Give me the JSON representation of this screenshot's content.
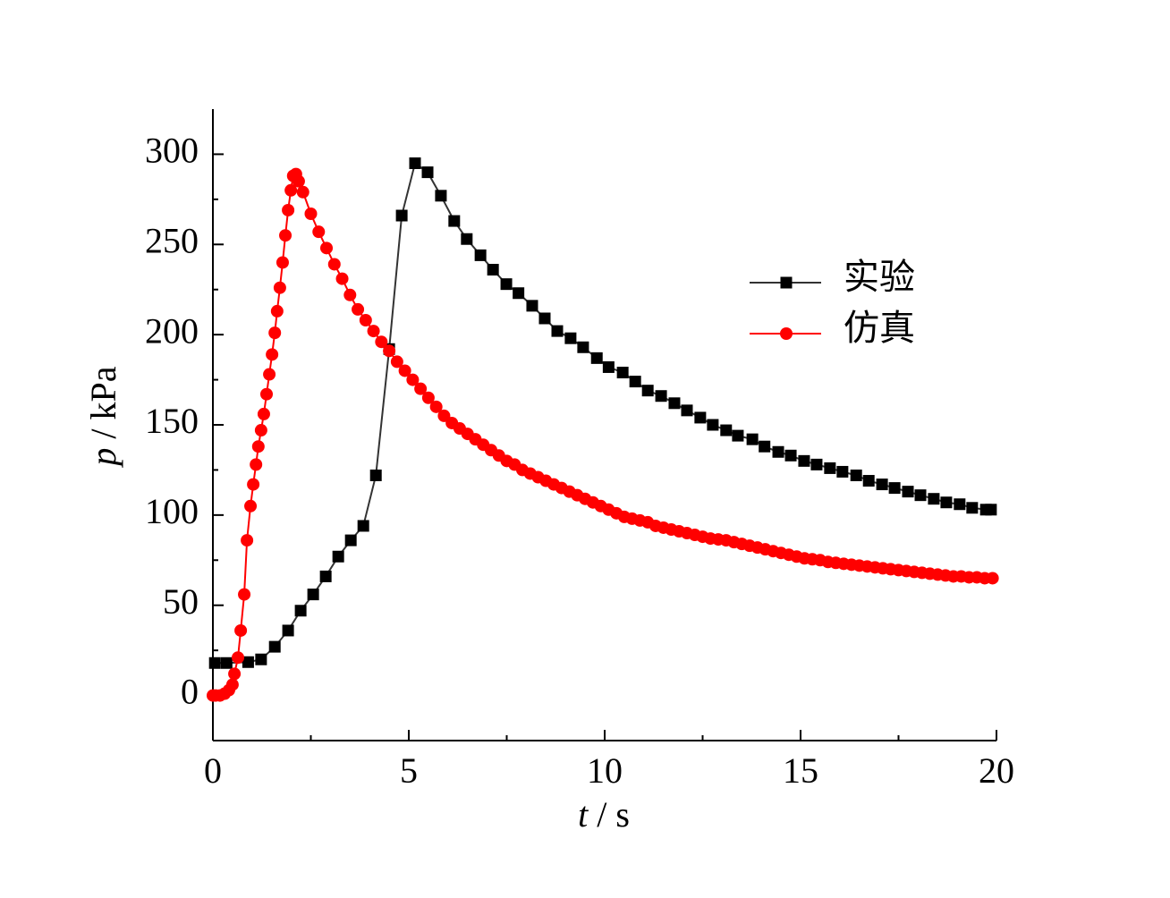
{
  "chart_data": {
    "type": "line",
    "x_label": [
      "t",
      " / s"
    ],
    "y_label": [
      "p",
      " / kPa"
    ],
    "xlim": [
      0,
      20
    ],
    "xticks": [
      0,
      5,
      10,
      15,
      20
    ],
    "xminorticks": [
      2.5,
      7.5,
      12.5,
      17.5
    ],
    "ylim": [
      -25,
      325
    ],
    "yticks": [
      0,
      50,
      100,
      150,
      200,
      250,
      300
    ],
    "yminorticks": [
      25,
      75,
      125,
      175,
      225,
      275
    ],
    "legend": "upper right",
    "series": [
      {
        "name": "实验",
        "color": "#000000",
        "line_color": "#333333",
        "marker": "square",
        "x": [
          0.05,
          0.35,
          0.9,
          1.23,
          1.58,
          1.92,
          2.24,
          2.56,
          2.88,
          3.2,
          3.52,
          3.84,
          4.16,
          4.5,
          4.82,
          5.16,
          5.48,
          5.82,
          6.16,
          6.48,
          6.83,
          7.15,
          7.49,
          7.8,
          8.15,
          8.47,
          8.79,
          9.13,
          9.45,
          9.8,
          10.1,
          10.46,
          10.78,
          11.1,
          11.44,
          11.78,
          12.1,
          12.44,
          12.76,
          13.1,
          13.4,
          13.77,
          14.08,
          14.43,
          14.75,
          15.09,
          15.41,
          15.75,
          16.07,
          16.42,
          16.74,
          17.08,
          17.4,
          17.74,
          18.06,
          18.4,
          18.72,
          19.06,
          19.38,
          19.73,
          19.86
        ],
        "values": [
          18,
          18,
          18.5,
          20,
          27,
          36,
          47,
          56,
          66,
          77,
          86,
          94,
          122,
          192,
          266,
          295,
          290,
          277,
          263,
          253,
          244,
          236,
          228,
          223,
          216,
          209,
          202,
          198,
          193,
          187,
          182,
          179,
          174,
          169,
          166,
          162,
          158,
          154,
          150,
          147,
          144,
          142,
          138,
          135,
          133,
          130,
          128,
          126,
          124,
          122,
          119,
          117,
          115,
          113,
          111,
          109,
          107,
          106,
          104,
          103,
          103
        ]
      },
      {
        "name": "仿真",
        "color": "#ff0000",
        "line_color": "#ff0000",
        "marker": "circle",
        "x": [
          0,
          0.07,
          0.18,
          0.3,
          0.41,
          0.5,
          0.55,
          0.64,
          0.71,
          0.8,
          0.87,
          0.96,
          1.03,
          1.1,
          1.16,
          1.23,
          1.3,
          1.37,
          1.44,
          1.51,
          1.58,
          1.64,
          1.71,
          1.78,
          1.85,
          1.92,
          1.99,
          2.05,
          2.12,
          2.19,
          2.3,
          2.5,
          2.7,
          2.9,
          3.1,
          3.3,
          3.5,
          3.7,
          3.9,
          4.1,
          4.3,
          4.5,
          4.7,
          4.9,
          5.1,
          5.3,
          5.5,
          5.7,
          5.9,
          6.1,
          6.3,
          6.5,
          6.7,
          6.9,
          7.1,
          7.3,
          7.5,
          7.7,
          7.9,
          8.1,
          8.3,
          8.5,
          8.7,
          8.9,
          9.1,
          9.3,
          9.5,
          9.7,
          9.9,
          10.1,
          10.3,
          10.5,
          10.7,
          10.9,
          11.1,
          11.3,
          11.5,
          11.7,
          11.9,
          12.1,
          12.3,
          12.5,
          12.7,
          12.9,
          13.1,
          13.3,
          13.5,
          13.7,
          13.9,
          14.1,
          14.3,
          14.5,
          14.7,
          14.9,
          15.1,
          15.3,
          15.5,
          15.7,
          15.9,
          16.1,
          16.3,
          16.5,
          16.7,
          16.9,
          17.1,
          17.3,
          17.5,
          17.7,
          17.9,
          18.1,
          18.3,
          18.5,
          18.7,
          18.9,
          19.1,
          19.3,
          19.5,
          19.7,
          19.9
        ],
        "values": [
          0,
          0,
          0,
          1,
          3,
          6,
          12,
          21,
          36,
          56,
          86,
          105,
          117,
          128,
          138,
          147,
          156,
          167,
          178,
          189,
          201,
          213,
          226,
          240,
          255,
          269,
          280,
          288,
          289,
          285,
          279,
          267,
          257,
          248,
          239,
          231,
          222,
          214,
          208,
          202,
          196,
          191,
          185,
          180,
          175,
          170,
          165,
          160,
          155,
          151,
          148,
          145,
          142,
          139,
          136,
          133,
          130,
          128,
          125,
          123,
          121,
          119,
          117,
          115,
          113,
          111,
          109,
          107,
          105,
          103,
          101,
          99,
          98,
          97,
          96,
          94,
          93,
          92,
          91,
          90,
          89,
          88,
          87,
          86.5,
          86,
          85,
          84,
          83,
          82,
          81,
          80,
          79,
          78,
          77,
          76,
          75.5,
          75,
          74,
          73.5,
          73,
          72.5,
          72,
          71.5,
          71,
          70.5,
          70,
          69.5,
          69,
          68.5,
          68,
          67.5,
          67,
          66.5,
          66,
          66,
          65.5,
          65.5,
          65,
          65
        ]
      }
    ]
  }
}
